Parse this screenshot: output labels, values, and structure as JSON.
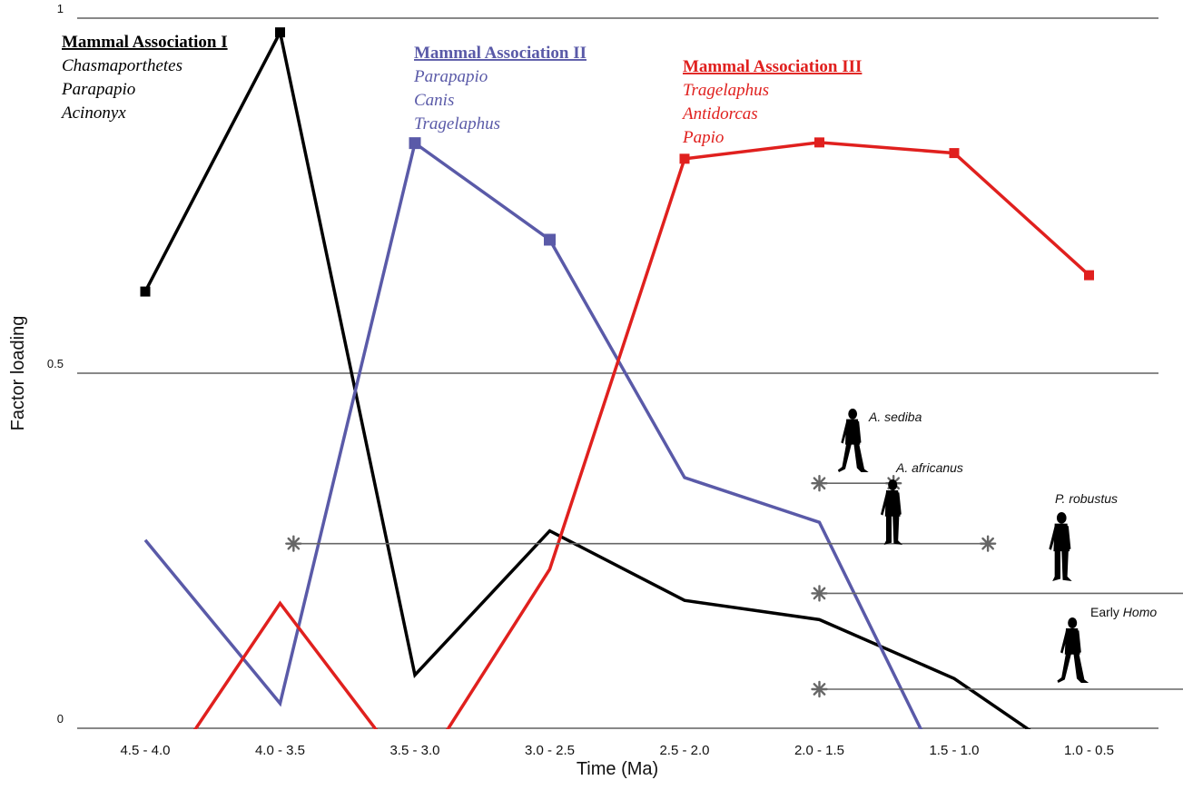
{
  "chart_data": {
    "type": "line",
    "xlabel": "Time (Ma)",
    "ylabel": "Factor loading",
    "ylim": [
      0,
      1
    ],
    "y_ticks": [
      "0",
      "0.5",
      "1"
    ],
    "categories": [
      "4.5 - 4.0",
      "4.0 - 3.5",
      "3.5 - 3.0",
      "3.0 - 2.5",
      "2.5 - 2.0",
      "2.0 - 1.5",
      "1.5 - 1.0",
      "1.0 - 0.5"
    ],
    "series": [
      {
        "name": "Mammal Association I",
        "color": "#000000",
        "values": [
          0.615,
          0.98,
          0.075,
          0.278,
          0.18,
          0.153,
          0.07,
          -0.06
        ],
        "marked": [
          true,
          true,
          false,
          false,
          false,
          false,
          false,
          false
        ]
      },
      {
        "name": "Mammal Association II",
        "color": "#5a5aa8",
        "values": [
          0.265,
          0.035,
          0.824,
          0.688,
          0.353,
          0.29,
          -0.097,
          null
        ],
        "marked": [
          false,
          false,
          true,
          true,
          false,
          false,
          false,
          false
        ]
      },
      {
        "name": "Mammal Association III",
        "color": "#e0201e",
        "values": [
          -0.106,
          0.176,
          -0.074,
          0.224,
          0.802,
          0.825,
          0.81,
          0.638
        ],
        "marked": [
          false,
          false,
          false,
          false,
          true,
          true,
          true,
          true
        ]
      }
    ]
  },
  "associations": [
    {
      "title": "Mammal Association I",
      "taxa": [
        "Chasmaporthetes",
        "Parapapio",
        "Acinonyx"
      ],
      "color": "#000000"
    },
    {
      "title": "Mammal Association II",
      "taxa": [
        "Parapapio",
        "Canis",
        "Tragelaphus"
      ],
      "color": "#5a5aa8"
    },
    {
      "title": "Mammal Association III",
      "taxa": [
        "Tragelaphus",
        "Antidorcas",
        "Papio"
      ],
      "color": "#e0201e"
    }
  ],
  "hominins": [
    {
      "label": "A. sediba",
      "y": 0.345,
      "x_start": 5.0,
      "x_end": 5.55,
      "end_type": "star"
    },
    {
      "label": "A. africanus",
      "y": 0.26,
      "x_start": 1.1,
      "x_end": 6.25,
      "end_type": "star"
    },
    {
      "label": "P. robustus",
      "y": 0.19,
      "x_start": 5.0,
      "x_end": 8.3,
      "end_type": "star"
    },
    {
      "label_prefix": "Early ",
      "label_italic": "Homo",
      "y": 0.055,
      "x_start": 5.0,
      "x_end": 8.55,
      "end_type": "arrow"
    }
  ],
  "colors": {
    "grid": "#111111",
    "range_line": "#666666",
    "silhouette": "#000000"
  }
}
